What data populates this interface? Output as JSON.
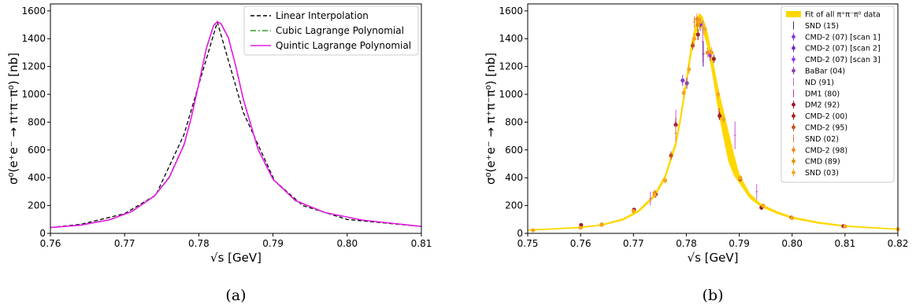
{
  "chart_data": [
    {
      "type": "line",
      "caption": "(a)",
      "xlabel": "√s [GeV]",
      "ylabel": "σ⁰(e⁺e⁻ → π⁺π⁻π⁰) [nb]",
      "xlim": [
        0.76,
        0.81
      ],
      "ylim": [
        0,
        1650
      ],
      "xticks": [
        "0.76",
        "0.77",
        "0.78",
        "0.79",
        "0.80",
        "0.81"
      ],
      "yticks": [
        "0",
        "200",
        "400",
        "600",
        "800",
        "1000",
        "1200",
        "1400",
        "1600"
      ],
      "legend_position": "top-right",
      "series": [
        {
          "name": "Linear Interpolation",
          "color": "#000000",
          "style": "dashed",
          "x": [
            0.76,
            0.7642,
            0.77,
            0.7742,
            0.778,
            0.7825,
            0.786,
            0.7902,
            0.794,
            0.8,
            0.81
          ],
          "y": [
            42,
            66,
            142,
            275,
            710,
            1520,
            870,
            380,
            200,
            100,
            50
          ]
        },
        {
          "name": "Cubic Lagrange Polynomial",
          "color": "#2ca02c",
          "style": "dashdot",
          "x": [
            0.76,
            0.764,
            0.768,
            0.771,
            0.774,
            0.776,
            0.778,
            0.779,
            0.78,
            0.781,
            0.782,
            0.7825,
            0.783,
            0.784,
            0.785,
            0.786,
            0.788,
            0.79,
            0.793,
            0.797,
            0.802,
            0.81
          ],
          "y": [
            42,
            60,
            100,
            160,
            270,
            405,
            640,
            840,
            1080,
            1330,
            1498,
            1520,
            1505,
            1400,
            1195,
            960,
            600,
            388,
            235,
            148,
            95,
            50
          ]
        },
        {
          "name": "Quintic Lagrange Polynomial",
          "color": "#e61be6",
          "style": "solid",
          "x": [
            0.76,
            0.764,
            0.768,
            0.771,
            0.774,
            0.776,
            0.778,
            0.779,
            0.78,
            0.781,
            0.782,
            0.7825,
            0.783,
            0.784,
            0.785,
            0.786,
            0.788,
            0.79,
            0.793,
            0.797,
            0.802,
            0.81
          ],
          "y": [
            42,
            58,
            98,
            158,
            268,
            400,
            635,
            835,
            1075,
            1325,
            1495,
            1522,
            1508,
            1405,
            1200,
            965,
            603,
            390,
            237,
            150,
            96,
            50
          ]
        }
      ]
    },
    {
      "type": "scatter",
      "caption": "(b)",
      "xlabel": "√s [GeV]",
      "ylabel": "σ⁰(e⁺e⁻ → π⁺π⁻π⁰) [nb]",
      "xlim": [
        0.75,
        0.82
      ],
      "ylim": [
        0,
        1650
      ],
      "xticks": [
        "0.75",
        "0.76",
        "0.77",
        "0.78",
        "0.79",
        "0.80",
        "0.81",
        "0.82"
      ],
      "yticks": [
        "0",
        "200",
        "400",
        "600",
        "800",
        "1000",
        "1200",
        "1400",
        "1600"
      ],
      "legend_position": "top-right",
      "fit_band": {
        "name": "Fit of all π⁺π⁻π⁰ data",
        "color": "#ffd700",
        "x": [
          0.75,
          0.755,
          0.76,
          0.764,
          0.768,
          0.771,
          0.774,
          0.776,
          0.778,
          0.779,
          0.78,
          0.781,
          0.782,
          0.7825,
          0.783,
          0.784,
          0.785,
          0.786,
          0.787,
          0.788,
          0.789,
          0.79,
          0.792,
          0.794,
          0.797,
          0.8,
          0.805,
          0.81,
          0.815,
          0.82
        ],
        "lo": [
          22,
          30,
          40,
          57,
          95,
          155,
          262,
          395,
          628,
          828,
          1065,
          1310,
          1470,
          1495,
          1470,
          1350,
          1140,
          900,
          700,
          520,
          420,
          365,
          255,
          195,
          145,
          108,
          72,
          50,
          38,
          28
        ],
        "hi": [
          26,
          34,
          46,
          63,
          105,
          167,
          280,
          420,
          662,
          868,
          1115,
          1370,
          1540,
          1580,
          1560,
          1440,
          1240,
          1040,
          880,
          720,
          560,
          420,
          285,
          212,
          158,
          118,
          80,
          56,
          43,
          32
        ]
      },
      "series": [
        {
          "name": "SND (15)",
          "color": "#3a1a8a",
          "marker": "none",
          "points": [
            [
              0.7832,
              1290,
              90
            ]
          ]
        },
        {
          "name": "CMD-2 (07) [scan 1]",
          "color": "#8a3ad6",
          "marker": "dot",
          "points": [
            [
              0.7793,
              1100,
              40
            ]
          ]
        },
        {
          "name": "CMD-2 (07) [scan 2]",
          "color": "#7a2ac6",
          "marker": "dot",
          "points": [
            [
              0.7826,
              1500,
              45
            ]
          ]
        },
        {
          "name": "CMD-2 (07) [scan 3]",
          "color": "#9b3de6",
          "marker": "dot",
          "points": [
            [
              0.7845,
              1280,
              40
            ]
          ]
        },
        {
          "name": "BaBar (04)",
          "color": "#8e44ad",
          "marker": "dot",
          "points": [
            [
              0.7801,
              1080,
              40
            ]
          ]
        },
        {
          "name": "ND (91)",
          "color": "#c85ad2",
          "marker": "none",
          "points": [
            [
              0.778,
              800,
              90
            ],
            [
              0.7831,
              1380,
              150
            ],
            [
              0.7892,
              705,
              100
            ],
            [
              0.7933,
              300,
              55
            ],
            [
              0.7732,
              250,
              50
            ]
          ]
        },
        {
          "name": "DM1 (80)",
          "color": "#c0399a",
          "marker": "none",
          "points": [
            [
              0.7822,
              1430,
              40
            ],
            [
              0.7862,
              860,
              40
            ]
          ]
        },
        {
          "name": "DM2 (92)",
          "color": "#a0152e",
          "marker": "dot",
          "points": [
            [
              0.778,
              780,
              50
            ],
            [
              0.7742,
              280,
              25
            ],
            [
              0.7701,
              170,
              15
            ]
          ]
        },
        {
          "name": "CMD-2 (00)",
          "color": "#a31f1f",
          "marker": "dot",
          "points": [
            [
              0.7822,
              1430,
              40
            ],
            [
              0.7852,
              1255,
              30
            ],
            [
              0.7863,
              845,
              30
            ],
            [
              0.7942,
              185,
              15
            ],
            [
              0.7601,
              60,
              8
            ],
            [
              0.7999,
              113,
              10
            ],
            [
              0.8097,
              52,
              5
            ]
          ]
        },
        {
          "name": "CMD-2 (95)",
          "color": "#c44f1b",
          "marker": "dot",
          "points": [
            [
              0.7812,
              1350,
              30
            ],
            [
              0.7902,
              390,
              20
            ],
            [
              0.7771,
              560,
              30
            ]
          ]
        },
        {
          "name": "SND (02)",
          "color": "#e87a3a",
          "marker": "none",
          "points": [
            [
              0.778,
              720,
              60
            ],
            [
              0.7815,
              1520,
              40
            ]
          ]
        },
        {
          "name": "CMD-2 (98)",
          "color": "#f28c28",
          "marker": "dot",
          "points": [
            [
              0.782,
              1540,
              40
            ],
            [
              0.784,
              1300,
              35
            ]
          ]
        },
        {
          "name": "CMD (89)",
          "color": "#e69500",
          "marker": "dot",
          "points": [
            [
              0.7821,
              1500,
              60
            ],
            [
              0.774,
              290,
              25
            ],
            [
              0.764,
              62,
              8
            ]
          ]
        },
        {
          "name": "SND (03)",
          "color": "#f2a81d",
          "marker": "dot",
          "points": [
            [
              0.751,
              22,
              3
            ],
            [
              0.76,
              40,
              4
            ],
            [
              0.764,
              65,
              6
            ],
            [
              0.77,
              160,
              10
            ],
            [
              0.774,
              275,
              15
            ],
            [
              0.776,
              380,
              20
            ],
            [
              0.7795,
              1010,
              35
            ],
            [
              0.7805,
              1180,
              35
            ],
            [
              0.7815,
              1400,
              40
            ],
            [
              0.7825,
              1520,
              40
            ],
            [
              0.7835,
              1470,
              40
            ],
            [
              0.7848,
              1300,
              40
            ],
            [
              0.786,
              1000,
              35
            ],
            [
              0.787,
              820,
              30
            ],
            [
              0.7902,
              400,
              20
            ],
            [
              0.7945,
              200,
              12
            ],
            [
              0.8,
              110,
              8
            ],
            [
              0.81,
              50,
              4
            ],
            [
              0.82,
              30,
              3
            ]
          ]
        }
      ]
    }
  ]
}
